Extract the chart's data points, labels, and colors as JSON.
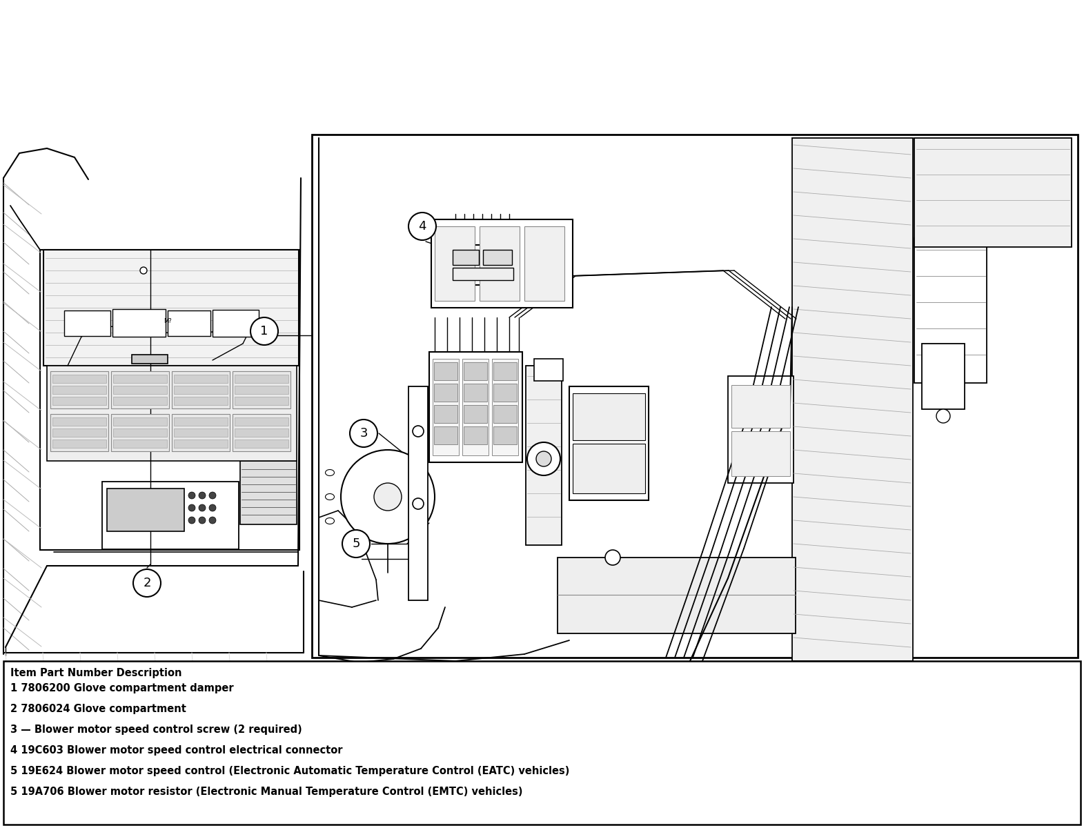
{
  "bg_color": "#ffffff",
  "fig_width": 15.71,
  "fig_height": 12.0,
  "legend_title": "Item Part Number Description",
  "legend_items": [
    "1 7806200 Glove compartment damper",
    "2 7806024 Glove compartment",
    "3 — Blower motor speed control screw (2 required)",
    "4 19C603 Blower motor speed control electrical connector",
    "5 19E624 Blower motor speed control (Electronic Automatic Temperature Control (EATC) vehicles)",
    "5 19A706 Blower motor resistor (Electronic Manual Temperature Control (EMTC) vehicles)"
  ],
  "legend_font_size": 10.5,
  "legend_title_font_size": 10.5
}
